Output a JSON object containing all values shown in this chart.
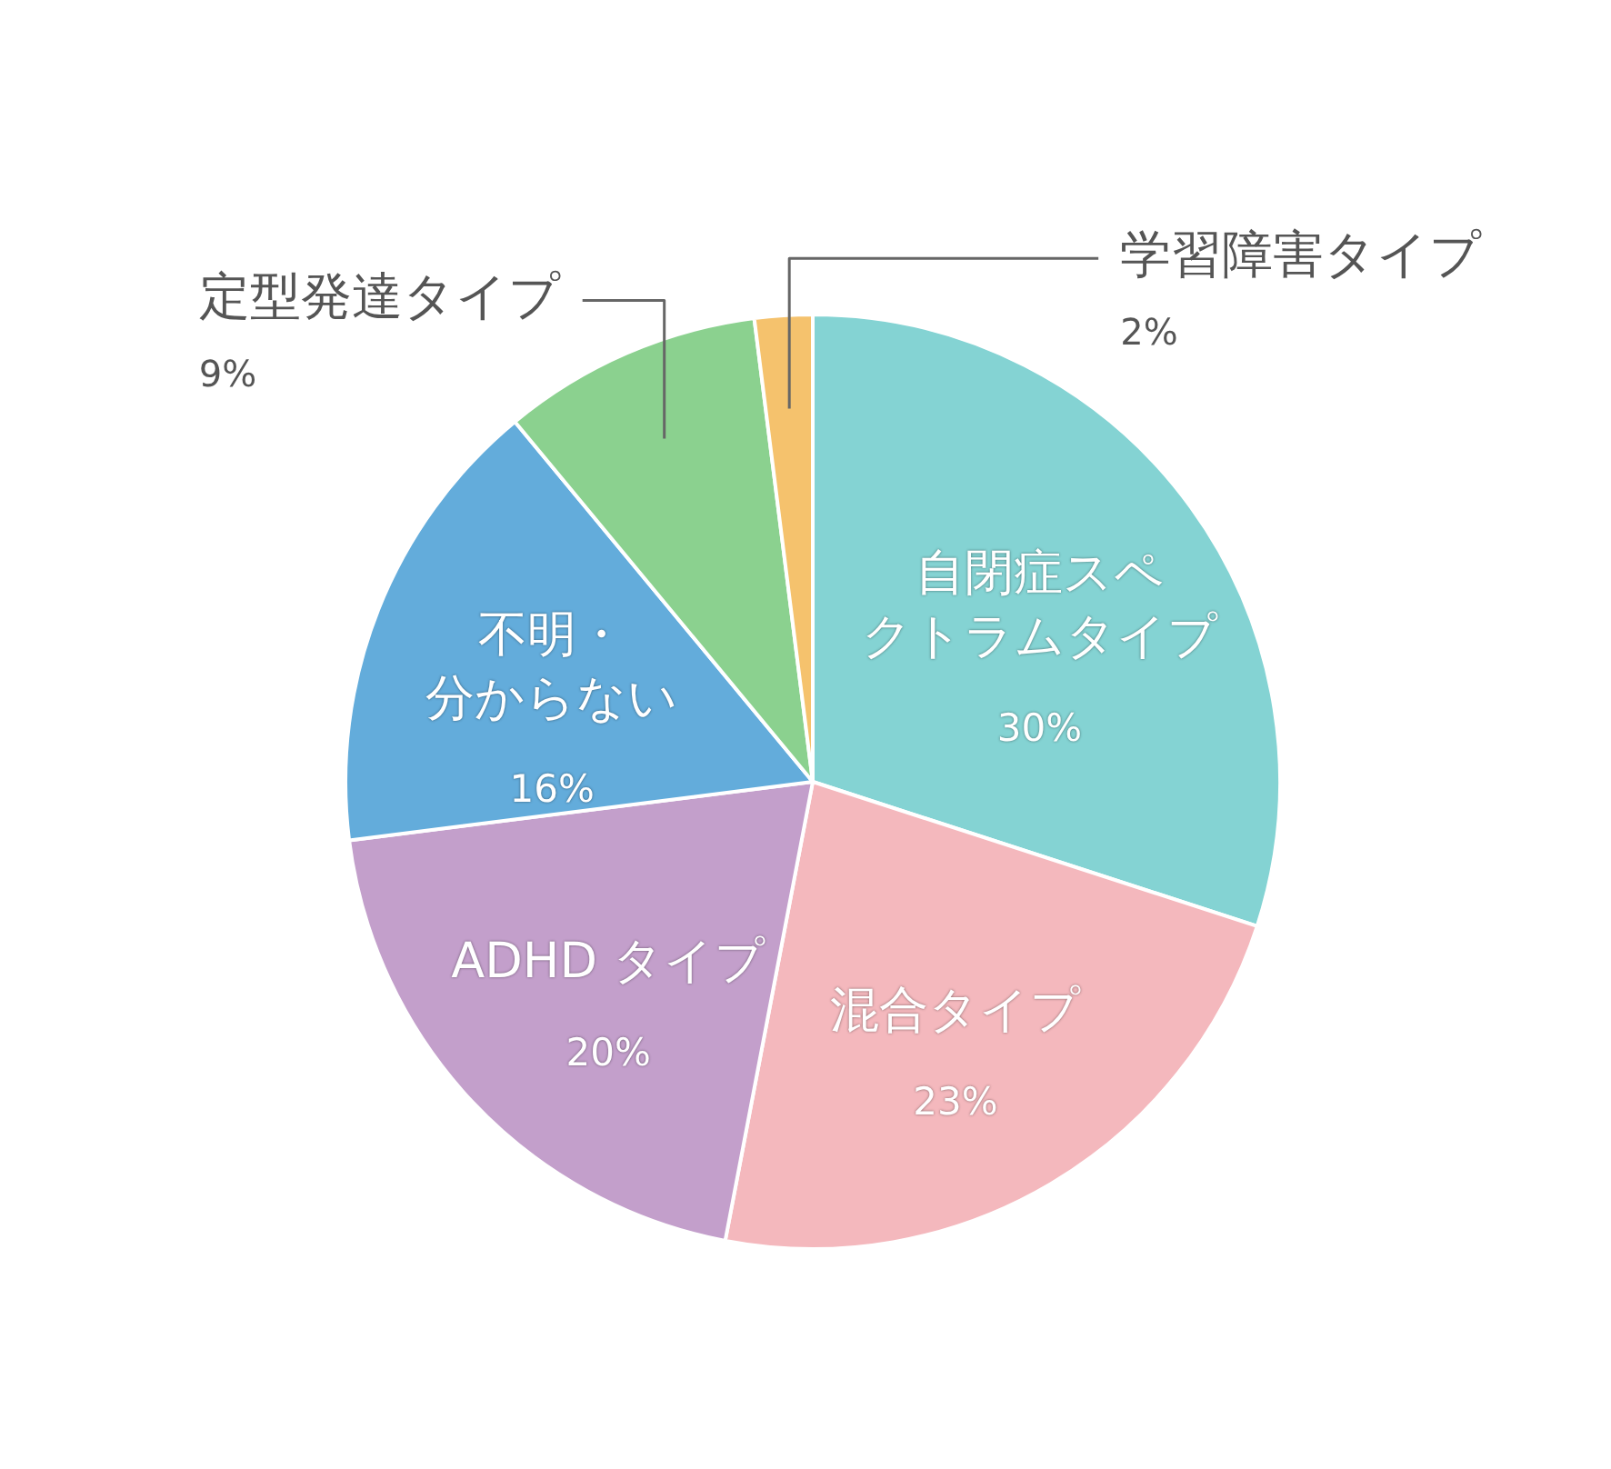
{
  "chart_data": {
    "type": "pie",
    "categories": [
      "自閉症スペクトラムタイプ",
      "混合タイプ",
      "ADHD タイプ",
      "不明・分からない",
      "定型発達タイプ",
      "学習障害タイプ"
    ],
    "values": [
      30,
      23,
      20,
      16,
      9,
      2
    ],
    "value_labels": [
      "30%",
      "23%",
      "20%",
      "16%",
      "9%",
      "2%"
    ],
    "colors": [
      "#84d3d3",
      "#f4b8bd",
      "#c39fcb",
      "#63acdb",
      "#8bd18f",
      "#f5c26d"
    ],
    "legend": false
  }
}
